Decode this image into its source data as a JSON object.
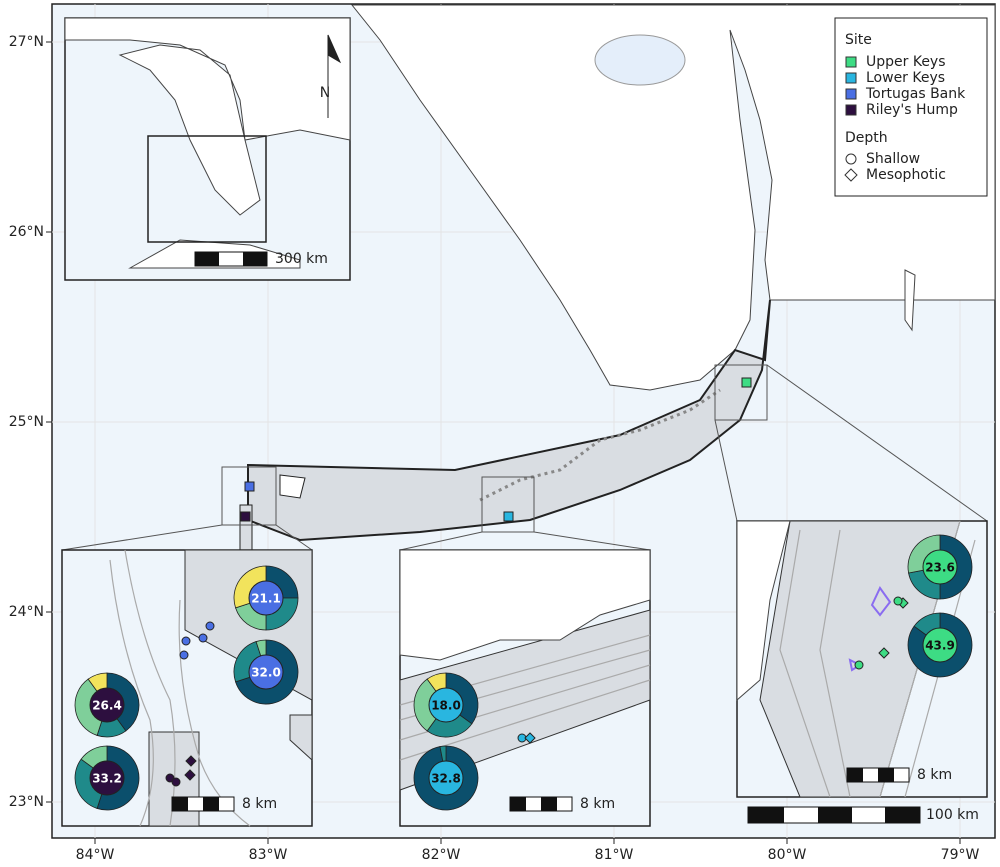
{
  "axes": {
    "y_labels": [
      "27°N",
      "26°N",
      "25°N",
      "24°N",
      "23°N"
    ],
    "x_labels": [
      "84°W",
      "83°W",
      "82°W",
      "81°W",
      "80°W",
      "79°W"
    ]
  },
  "legend": {
    "site_title": "Site",
    "sites": [
      {
        "name": "Upper Keys",
        "color": "#3ddc84"
      },
      {
        "name": "Lower Keys",
        "color": "#29b6e0"
      },
      {
        "name": "Tortugas Bank",
        "color": "#4a6fe3"
      },
      {
        "name": "Riley's Hump",
        "color": "#2d0f3f"
      }
    ],
    "depth_title": "Depth",
    "depths": [
      "Shallow",
      "Mesophotic"
    ]
  },
  "north_arrow": "N",
  "scale_bars": {
    "overview": "300 km",
    "inset": "8 km",
    "main": "100 km"
  },
  "pies": [
    {
      "label": "21.1",
      "site": 2,
      "segments": [
        {
          "color": "#0b4f6c",
          "value": 25
        },
        {
          "color": "#1f8a8a",
          "value": 25
        },
        {
          "color": "#7fcf9a",
          "value": 20
        },
        {
          "color": "#f2e35c",
          "value": 30
        }
      ]
    },
    {
      "label": "32.0",
      "site": 2,
      "segments": [
        {
          "color": "#0b4f6c",
          "value": 70
        },
        {
          "color": "#1f8a8a",
          "value": 25
        },
        {
          "color": "#7fcf9a",
          "value": 5
        }
      ]
    },
    {
      "label": "26.4",
      "site": 3,
      "segments": [
        {
          "color": "#0b4f6c",
          "value": 40
        },
        {
          "color": "#1f8a8a",
          "value": 15
        },
        {
          "color": "#7fcf9a",
          "value": 35
        },
        {
          "color": "#f2e35c",
          "value": 10
        }
      ]
    },
    {
      "label": "33.2",
      "site": 3,
      "segments": [
        {
          "color": "#0b4f6c",
          "value": 55
        },
        {
          "color": "#1f8a8a",
          "value": 30
        },
        {
          "color": "#7fcf9a",
          "value": 15
        }
      ]
    },
    {
      "label": "18.0",
      "site": 1,
      "segments": [
        {
          "color": "#0b4f6c",
          "value": 35
        },
        {
          "color": "#1f8a8a",
          "value": 25
        },
        {
          "color": "#7fcf9a",
          "value": 30
        },
        {
          "color": "#f2e35c",
          "value": 10
        }
      ]
    },
    {
      "label": "32.8",
      "site": 1,
      "segments": [
        {
          "color": "#0b4f6c",
          "value": 97
        },
        {
          "color": "#1f8a8a",
          "value": 3
        }
      ]
    },
    {
      "label": "23.6",
      "site": 0,
      "segments": [
        {
          "color": "#0b4f6c",
          "value": 50
        },
        {
          "color": "#1f8a8a",
          "value": 22
        },
        {
          "color": "#7fcf9a",
          "value": 28
        }
      ]
    },
    {
      "label": "43.9",
      "site": 0,
      "segments": [
        {
          "color": "#0b4f6c",
          "value": 85
        },
        {
          "color": "#1f8a8a",
          "value": 15
        }
      ]
    }
  ]
}
